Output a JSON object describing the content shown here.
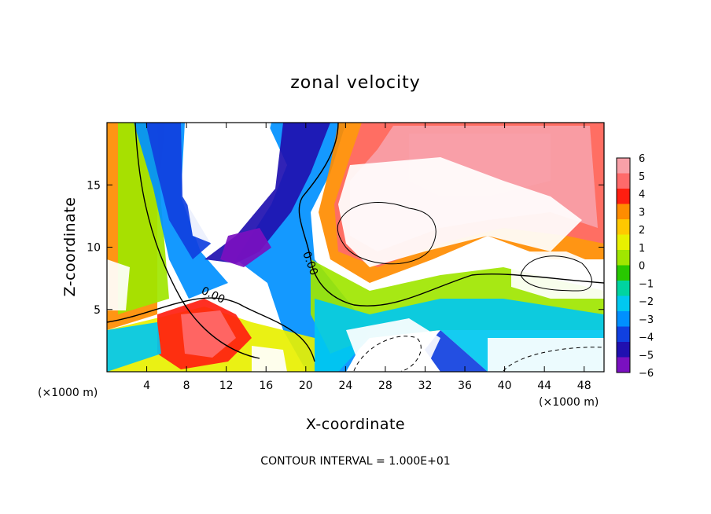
{
  "chart_data": {
    "type": "heatmap",
    "title": "zonal velocity",
    "xlabel": "X-coordinate",
    "ylabel": "Z-coordinate",
    "x_unit": "(×1000 m)",
    "y_unit": "(×1000 m)",
    "xlim": [
      0,
      50
    ],
    "ylim": [
      0,
      20
    ],
    "x_ticks": [
      "4",
      "8",
      "12",
      "16",
      "20",
      "24",
      "28",
      "32",
      "36",
      "40",
      "44",
      "48"
    ],
    "y_ticks": [
      "5",
      "10",
      "15"
    ],
    "colorbar": {
      "range": [
        -6,
        6
      ],
      "ticks": [
        "6",
        "5",
        "4",
        "3",
        "2",
        "1",
        "0",
        "−1",
        "−2",
        "−3",
        "−4",
        "−5",
        "−6"
      ],
      "colors": [
        "#f8a0a8",
        "#ff6a6a",
        "#ff1e10",
        "#ff8c00",
        "#ffc800",
        "#e8f000",
        "#a0e600",
        "#28c800",
        "#00d4a0",
        "#00c8f0",
        "#0090ff",
        "#1040e0",
        "#2010b0",
        "#7a10c0"
      ]
    },
    "contour_labels": [
      "0.00",
      "0.00"
    ],
    "footer": "CONTOUR INTERVAL = 1.000E+01"
  }
}
